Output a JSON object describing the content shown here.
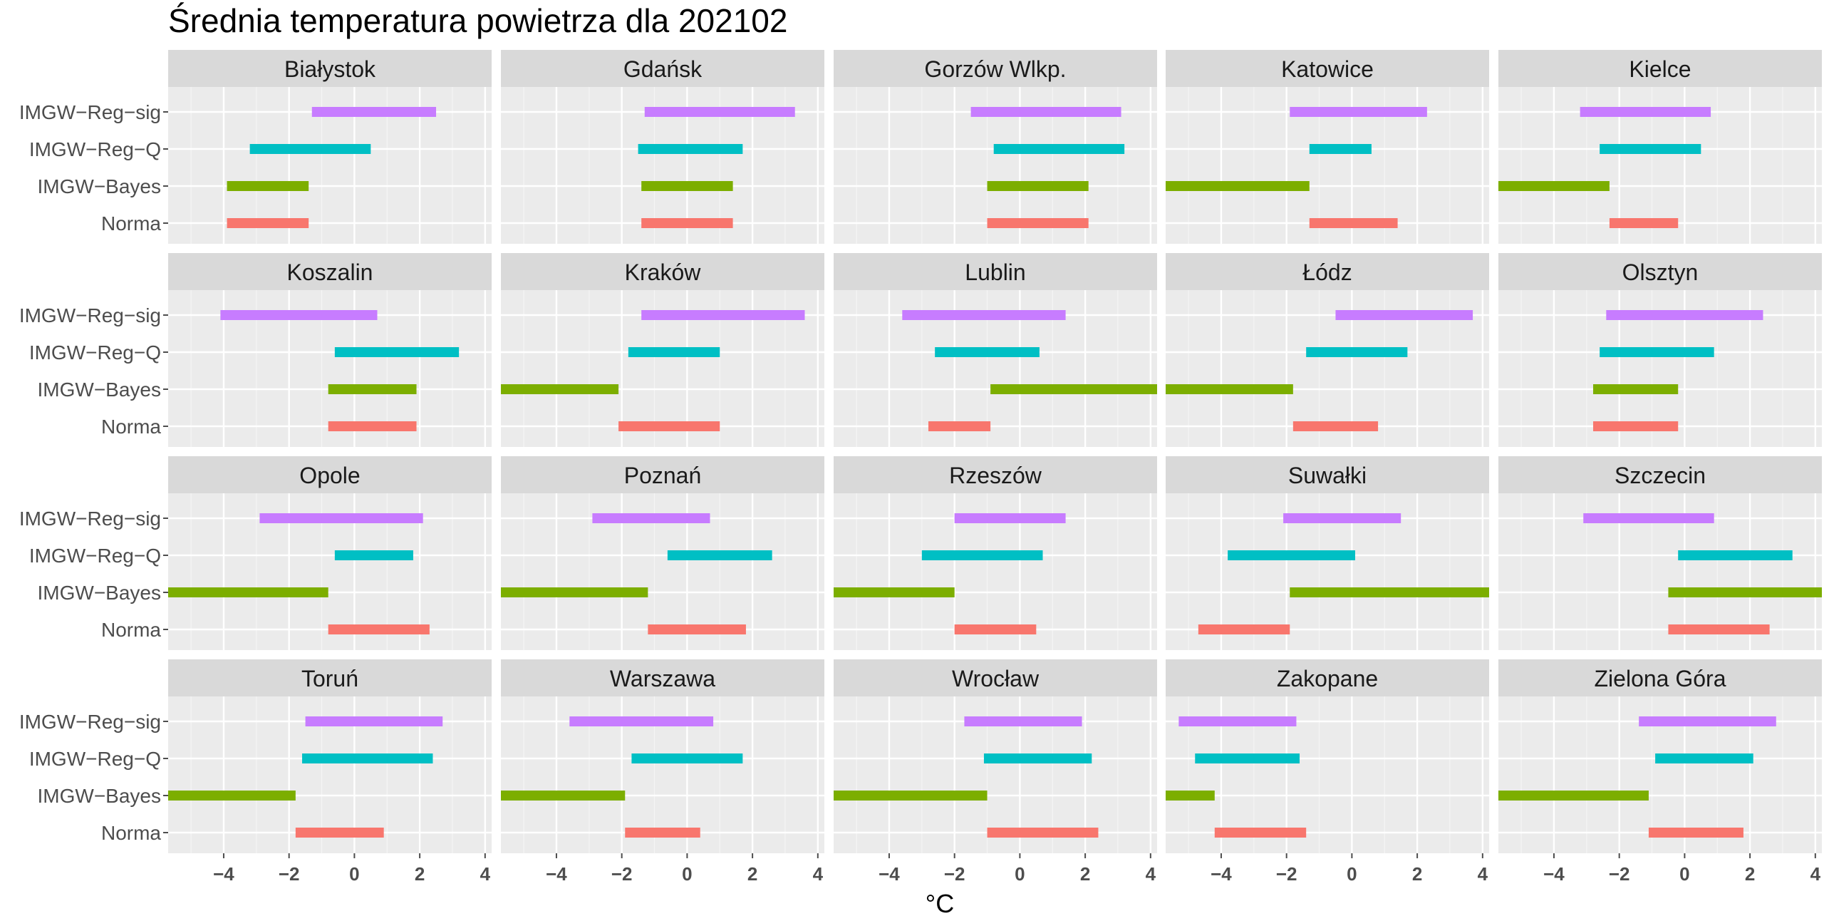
{
  "chart_data": {
    "type": "bar",
    "subtype": "horizontal-range-facets",
    "title": "Średnia temperatura powietrza dla 202102",
    "xlabel": "°C",
    "ylabel": "",
    "x_range": [
      -5.7,
      4.2
    ],
    "x_ticks": [
      -4,
      -2,
      0,
      2,
      4
    ],
    "x_tick_labels": [
      "−4",
      "−2",
      "0",
      "2",
      "4"
    ],
    "grid": true,
    "legend": "none",
    "categories": [
      "IMGW−Reg−sig",
      "IMGW−Reg−Q",
      "IMGW−Bayes",
      "Norma"
    ],
    "colors": {
      "IMGW−Reg−sig": "#C77CFF",
      "IMGW−Reg−Q": "#00BFC4",
      "IMGW−Bayes": "#7CAE00",
      "Norma": "#F8766D"
    },
    "facets": [
      {
        "name": "Białystok",
        "ranges": [
          [
            -1.3,
            2.5
          ],
          [
            -3.2,
            0.5
          ],
          [
            -3.9,
            -1.4
          ],
          [
            -3.9,
            -1.4
          ]
        ]
      },
      {
        "name": "Gdańsk",
        "ranges": [
          [
            -1.3,
            3.3
          ],
          [
            -1.5,
            1.7
          ],
          [
            -1.4,
            1.4
          ],
          [
            -1.4,
            1.4
          ]
        ]
      },
      {
        "name": "Gorzów Wlkp.",
        "ranges": [
          [
            -1.5,
            3.1
          ],
          [
            -0.8,
            3.2
          ],
          [
            -1.0,
            2.1
          ],
          [
            -1.0,
            2.1
          ]
        ]
      },
      {
        "name": "Katowice",
        "ranges": [
          [
            -1.9,
            2.3
          ],
          [
            -1.3,
            0.6
          ],
          [
            -5.7,
            -1.3
          ],
          [
            -1.3,
            1.4
          ]
        ]
      },
      {
        "name": "Kielce",
        "ranges": [
          [
            -3.2,
            0.8
          ],
          [
            -2.6,
            0.5
          ],
          [
            -5.7,
            -2.3
          ],
          [
            -2.3,
            -0.2
          ]
        ]
      },
      {
        "name": "Koszalin",
        "ranges": [
          [
            -4.1,
            0.7
          ],
          [
            -0.6,
            3.2
          ],
          [
            -0.8,
            1.9
          ],
          [
            -0.8,
            1.9
          ]
        ]
      },
      {
        "name": "Kraków",
        "ranges": [
          [
            -1.4,
            3.6
          ],
          [
            -1.8,
            1.0
          ],
          [
            -5.7,
            -2.1
          ],
          [
            -2.1,
            1.0
          ]
        ]
      },
      {
        "name": "Lublin",
        "ranges": [
          [
            -3.6,
            1.4
          ],
          [
            -2.6,
            0.6
          ],
          [
            -0.9,
            4.2
          ],
          [
            -2.8,
            -0.9
          ]
        ]
      },
      {
        "name": "Łódz",
        "ranges": [
          [
            -0.5,
            3.7
          ],
          [
            -1.4,
            1.7
          ],
          [
            -5.7,
            -1.8
          ],
          [
            -1.8,
            0.8
          ]
        ]
      },
      {
        "name": "Olsztyn",
        "ranges": [
          [
            -2.4,
            2.4
          ],
          [
            -2.6,
            0.9
          ],
          [
            -2.8,
            -0.2
          ],
          [
            -2.8,
            -0.2
          ]
        ]
      },
      {
        "name": "Opole",
        "ranges": [
          [
            -2.9,
            2.1
          ],
          [
            -0.6,
            1.8
          ],
          [
            -5.7,
            -0.8
          ],
          [
            -0.8,
            2.3
          ]
        ]
      },
      {
        "name": "Poznań",
        "ranges": [
          [
            -2.9,
            0.7
          ],
          [
            -0.6,
            2.6
          ],
          [
            -5.7,
            -1.2
          ],
          [
            -1.2,
            1.8
          ]
        ]
      },
      {
        "name": "Rzeszów",
        "ranges": [
          [
            -2.0,
            1.4
          ],
          [
            -3.0,
            0.7
          ],
          [
            -5.7,
            -2.0
          ],
          [
            -2.0,
            0.5
          ]
        ]
      },
      {
        "name": "Suwałki",
        "ranges": [
          [
            -2.1,
            1.5
          ],
          [
            -3.8,
            0.1
          ],
          [
            -1.9,
            4.2
          ],
          [
            -4.7,
            -1.9
          ]
        ]
      },
      {
        "name": "Szczecin",
        "ranges": [
          [
            -3.1,
            0.9
          ],
          [
            -0.2,
            3.3
          ],
          [
            -0.5,
            4.2
          ],
          [
            -0.5,
            2.6
          ]
        ]
      },
      {
        "name": "Toruń",
        "ranges": [
          [
            -1.5,
            2.7
          ],
          [
            -1.6,
            2.4
          ],
          [
            -5.7,
            -1.8
          ],
          [
            -1.8,
            0.9
          ]
        ]
      },
      {
        "name": "Warszawa",
        "ranges": [
          [
            -3.6,
            0.8
          ],
          [
            -1.7,
            1.7
          ],
          [
            -5.7,
            -1.9
          ],
          [
            -1.9,
            0.4
          ]
        ]
      },
      {
        "name": "Wrocław",
        "ranges": [
          [
            -1.7,
            1.9
          ],
          [
            -1.1,
            2.2
          ],
          [
            -5.7,
            -1.0
          ],
          [
            -1.0,
            2.4
          ]
        ]
      },
      {
        "name": "Zakopane",
        "ranges": [
          [
            -5.3,
            -1.7
          ],
          [
            -4.8,
            -1.6
          ],
          [
            -5.7,
            -4.2
          ],
          [
            -4.2,
            -1.4
          ]
        ]
      },
      {
        "name": "Zielona Góra",
        "ranges": [
          [
            -1.4,
            2.8
          ],
          [
            -0.9,
            2.1
          ],
          [
            -5.7,
            -1.1
          ],
          [
            -1.1,
            1.8
          ]
        ]
      }
    ]
  }
}
